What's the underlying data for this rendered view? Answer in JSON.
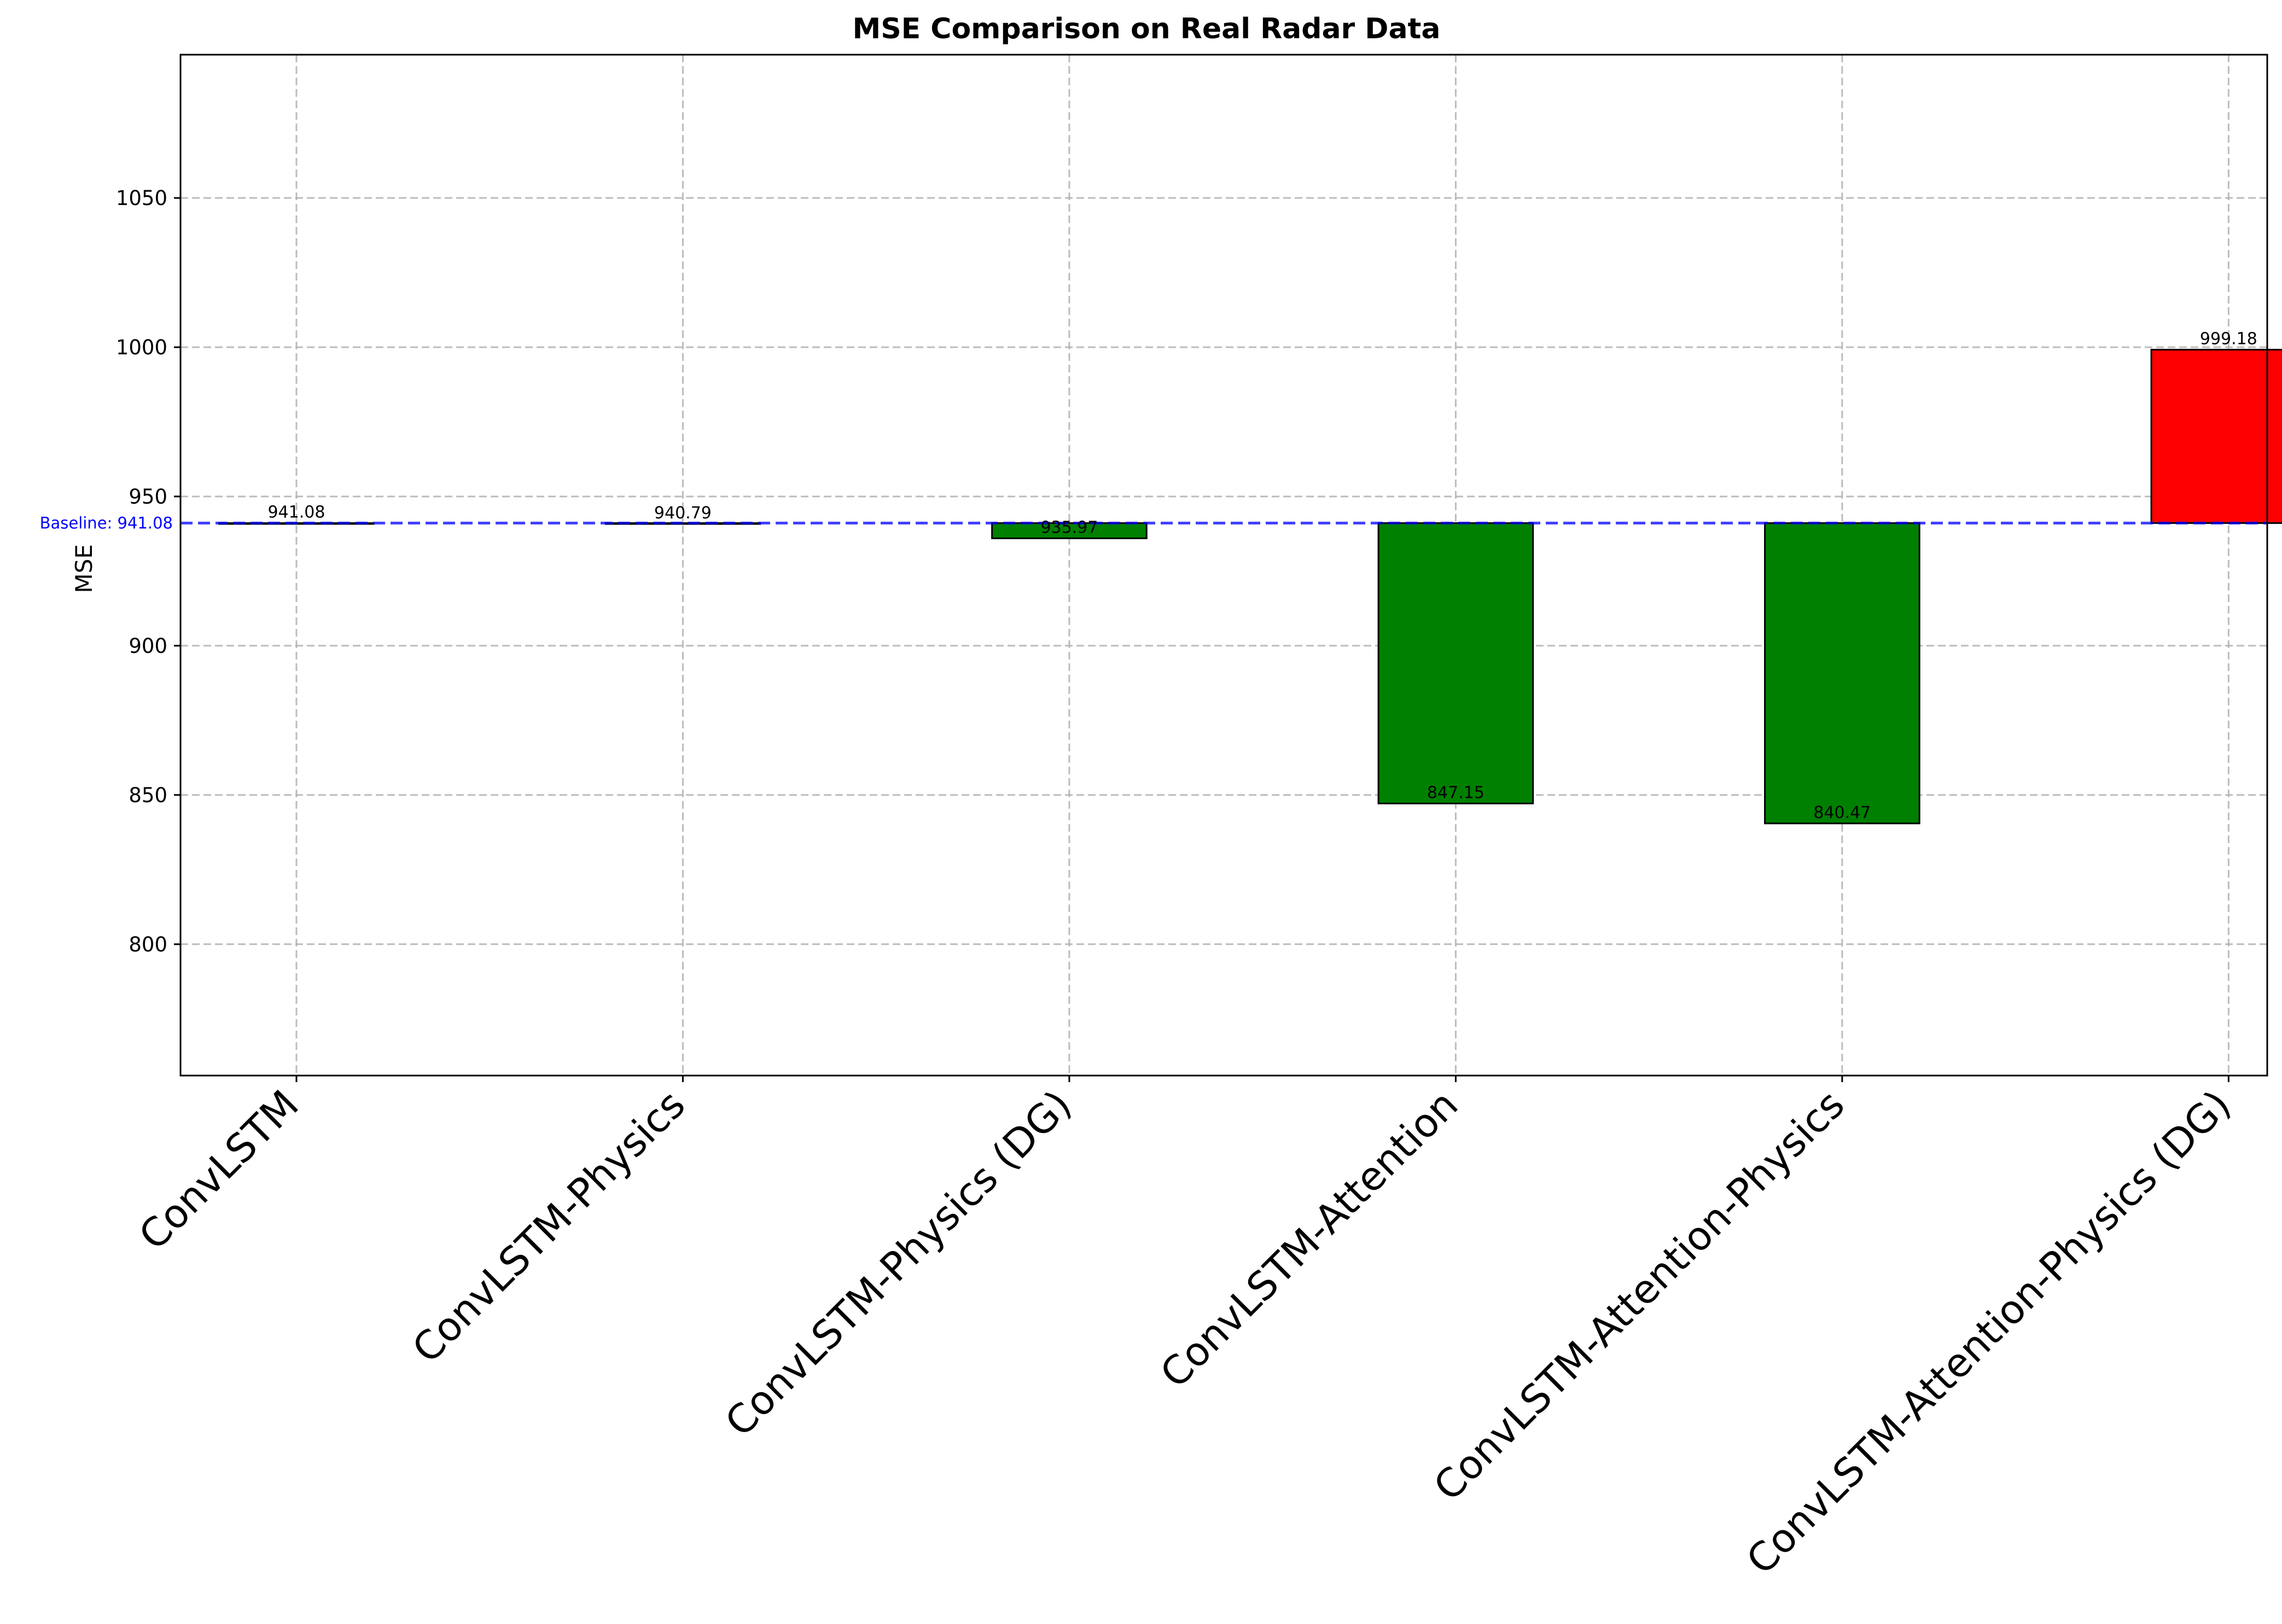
{
  "chart_data": {
    "type": "bar",
    "title": "MSE Comparison on Real Radar Data",
    "xlabel": "",
    "ylabel": "MSE",
    "ylim": [
      756,
      1098
    ],
    "yticks": [
      800,
      850,
      900,
      950,
      1000,
      1050
    ],
    "grid": true,
    "categories": [
      "ConvLSTM",
      "ConvLSTM-Physics",
      "ConvLSTM-Physics (DG)",
      "ConvLSTM-Attention",
      "ConvLSTM-Attention-Physics",
      "ConvLSTM-Attention-Physics (DG)"
    ],
    "values": [
      941.08,
      940.79,
      935.97,
      847.15,
      840.47,
      999.18
    ],
    "value_labels": [
      "941.08",
      "940.79",
      "935.97",
      "847.15",
      "840.47",
      "999.18"
    ],
    "bar_colors": [
      "#0000ff",
      "#008000",
      "#008000",
      "#008000",
      "#008000",
      "#ff0000"
    ],
    "baseline": {
      "value": 941.08,
      "label": "Baseline: 941.08",
      "color": "#0000ff",
      "style": "dashed"
    },
    "colors": {
      "improvement": "#008000",
      "worse": "#ff0000",
      "baseline": "#0000ff"
    }
  }
}
